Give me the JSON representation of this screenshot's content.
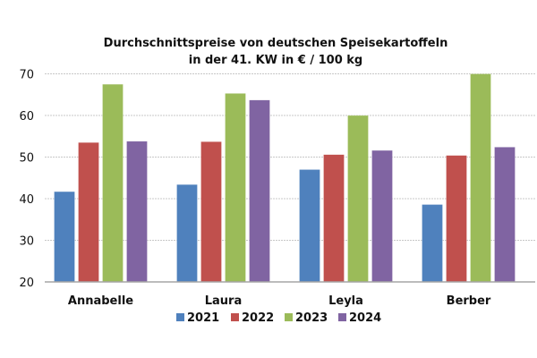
{
  "chart_data": {
    "type": "bar",
    "title": "Durchschnittspreise von deutschen Speisekartoffeln",
    "subtitle": "in der 41. KW in € / 100 kg",
    "xlabel": "",
    "ylabel": "",
    "ylim": [
      20,
      70
    ],
    "yticks": [
      20,
      30,
      40,
      50,
      60,
      70
    ],
    "grid": true,
    "legend_position": "bottom",
    "categories": [
      "Annabelle",
      "Laura",
      "Leyla",
      "Berber"
    ],
    "series": [
      {
        "name": "2021",
        "color": "#4f81bd",
        "values": [
          41.7,
          43.4,
          47.0,
          38.6
        ]
      },
      {
        "name": "2022",
        "color": "#c0504d",
        "values": [
          53.5,
          53.7,
          50.6,
          50.4
        ]
      },
      {
        "name": "2023",
        "color": "#9bbb59",
        "values": [
          67.5,
          65.3,
          60.0,
          70.0
        ]
      },
      {
        "name": "2024",
        "color": "#8064a2",
        "values": [
          53.8,
          63.7,
          51.6,
          52.4
        ]
      }
    ]
  }
}
